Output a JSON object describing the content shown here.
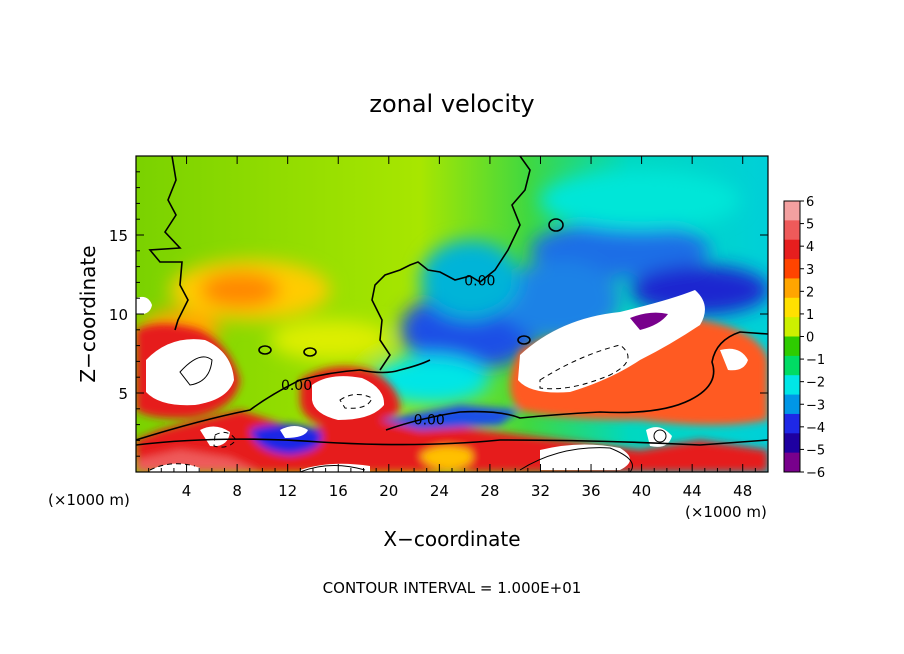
{
  "chart_data": {
    "type": "heatmap",
    "title": "zonal velocity",
    "xlabel": "X−coordinate",
    "ylabel": "Z−coordinate",
    "x_unit": "(×1000 m)",
    "x_unit_left": "(×1000 m)",
    "x_ticks": [
      4,
      8,
      12,
      16,
      20,
      24,
      28,
      32,
      36,
      40,
      44,
      48
    ],
    "y_ticks": [
      5,
      10,
      15
    ],
    "xlim": [
      0,
      50
    ],
    "ylim": [
      0,
      20
    ],
    "colorbar": {
      "ticks": [
        6,
        5,
        4,
        3,
        2,
        1,
        0,
        -1,
        -2,
        -3,
        -4,
        -5,
        -6
      ],
      "tick_labels": [
        "6",
        "5",
        "4",
        "3",
        "2",
        "1",
        "0",
        "−1",
        "−2",
        "−3",
        "−4",
        "−5",
        "−6"
      ],
      "colors": [
        "#f3a0a0",
        "#ee5a5a",
        "#e61e1e",
        "#ff4400",
        "#ffa500",
        "#ffe000",
        "#ccf000",
        "#2ecc00",
        "#00dc64",
        "#00e6e6",
        "#0096e6",
        "#1e28e6",
        "#1e00a0",
        "#78008c"
      ]
    },
    "contour_labels": [
      {
        "text": "0.00",
        "x": 27.2,
        "y": 11.8
      },
      {
        "text": "0.00",
        "x": 12.7,
        "y": 5.2
      },
      {
        "text": "0.00",
        "x": 23.2,
        "y": 3.0
      }
    ],
    "regions": [
      {
        "value": 0.8,
        "kind": "upper-left broad field"
      },
      {
        "value": 1.8,
        "kind": "yellow band"
      },
      {
        "value": -2.0,
        "kind": "right upper cyan"
      },
      {
        "value": -4.5,
        "kind": "blue band"
      },
      {
        "value": 8.0,
        "kind": "white saturated cores"
      },
      {
        "value": -8.0,
        "kind": "white negative cores"
      }
    ],
    "footer": "CONTOUR INTERVAL = 1.000E+01"
  }
}
